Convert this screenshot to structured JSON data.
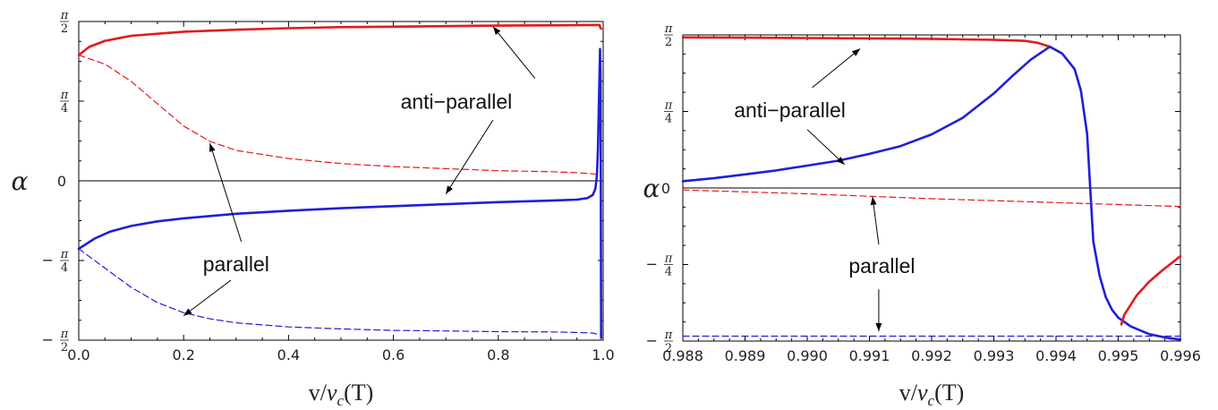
{
  "chart_data": [
    {
      "type": "line",
      "panel": "left",
      "xlabel": "v/",
      "xlabel_sym": "v",
      "xlabel_sub": "c",
      "xlabel_tail": "(T)",
      "ylabel": "α",
      "xlim": [
        0.0,
        1.0
      ],
      "ylim": [
        -1.5708,
        1.5708
      ],
      "x_ticks": [
        "0.0",
        "0.2",
        "0.4",
        "0.6",
        "0.8",
        "1.0"
      ],
      "x_tick_values": [
        0.0,
        0.2,
        0.4,
        0.6,
        0.8,
        1.0
      ],
      "y_ticks": [
        {
          "value": 1.5708,
          "sign": "",
          "num": "π",
          "den": "2"
        },
        {
          "value": 0.7854,
          "sign": "",
          "num": "π",
          "den": "4"
        },
        {
          "value": 0,
          "sign": "",
          "num": "",
          "den": "",
          "plain": "0"
        },
        {
          "value": -0.7854,
          "sign": "−",
          "num": "π",
          "den": "4"
        },
        {
          "value": -1.5708,
          "sign": "−",
          "num": "π",
          "den": "2"
        }
      ],
      "series": [
        {
          "color": "#e31a1c",
          "dash": false,
          "x": [
            0.0,
            0.02,
            0.05,
            0.1,
            0.2,
            0.3,
            0.4,
            0.5,
            0.6,
            0.7,
            0.8,
            0.9,
            0.95,
            0.98,
            0.99,
            0.993
          ],
          "y": [
            1.24,
            1.32,
            1.38,
            1.43,
            1.47,
            1.49,
            1.505,
            1.515,
            1.52,
            1.525,
            1.53,
            1.533,
            1.535,
            1.536,
            1.536,
            1.536
          ]
        },
        {
          "color": "#e31a1c",
          "dash": false,
          "x": [
            0.993,
            0.9945,
            0.996
          ],
          "y": [
            1.536,
            1.51,
            1.5
          ]
        },
        {
          "color": "#e31a1c",
          "dash": true,
          "x": [
            0.0,
            0.05,
            0.1,
            0.15,
            0.2,
            0.25,
            0.3,
            0.4,
            0.5,
            0.6,
            0.7,
            0.8,
            0.9,
            0.95,
            0.98,
            0.996
          ],
          "y": [
            1.24,
            1.15,
            0.98,
            0.76,
            0.54,
            0.39,
            0.3,
            0.22,
            0.17,
            0.14,
            0.12,
            0.1,
            0.09,
            0.08,
            0.07,
            0.05
          ]
        },
        {
          "color": "#1f1fd6",
          "dash": false,
          "x": [
            0.0,
            0.03,
            0.06,
            0.1,
            0.15,
            0.2,
            0.3,
            0.4,
            0.5,
            0.6,
            0.7,
            0.8,
            0.9,
            0.95,
            0.97,
            0.98,
            0.985,
            0.988,
            0.99,
            0.992,
            0.994,
            0.995,
            0.996
          ],
          "y": [
            -0.67,
            -0.57,
            -0.5,
            -0.445,
            -0.4,
            -0.37,
            -0.325,
            -0.295,
            -0.27,
            -0.25,
            -0.23,
            -0.21,
            -0.195,
            -0.185,
            -0.17,
            -0.14,
            -0.08,
            0.05,
            0.3,
            0.8,
            1.3,
            1.0,
            -1.55
          ]
        },
        {
          "color": "#1f1fd6",
          "dash": true,
          "x": [
            0.0,
            0.05,
            0.1,
            0.15,
            0.2,
            0.25,
            0.3,
            0.4,
            0.5,
            0.6,
            0.7,
            0.8,
            0.9,
            0.95,
            0.98,
            0.996
          ],
          "y": [
            -0.67,
            -0.86,
            -1.05,
            -1.2,
            -1.3,
            -1.36,
            -1.4,
            -1.44,
            -1.46,
            -1.475,
            -1.48,
            -1.487,
            -1.49,
            -1.495,
            -1.5,
            -1.52
          ]
        }
      ],
      "annotations": [
        {
          "text": "anti−parallel",
          "x": 0.72,
          "y": 0.78,
          "arrows": [
            {
              "from": [
                0.87,
                1.01
              ],
              "to": [
                0.79,
                1.52
              ]
            },
            {
              "from": [
                0.79,
                0.6
              ],
              "to": [
                0.7,
                -0.13
              ]
            }
          ]
        },
        {
          "text": "parallel",
          "x": 0.3,
          "y": -0.82,
          "arrows": [
            {
              "from": [
                0.31,
                -0.6
              ],
              "to": [
                0.25,
                0.37
              ]
            },
            {
              "from": [
                0.29,
                -0.98
              ],
              "to": [
                0.2,
                -1.33
              ]
            }
          ]
        }
      ],
      "hline": 0
    },
    {
      "type": "line",
      "panel": "right",
      "xlabel": "v/",
      "xlabel_sym": "v",
      "xlabel_sub": "c",
      "xlabel_tail": "(T)",
      "ylabel": "α",
      "xlim": [
        0.988,
        0.996
      ],
      "ylim": [
        -1.5708,
        1.5708
      ],
      "x_ticks": [
        "0.988",
        "0.989",
        "0.990",
        "0.991",
        "0.992",
        "0.993",
        "0.994",
        "0.995",
        "0.996"
      ],
      "x_tick_values": [
        0.988,
        0.989,
        0.99,
        0.991,
        0.992,
        0.993,
        0.994,
        0.995,
        0.996
      ],
      "y_ticks": [
        {
          "value": 1.5708,
          "sign": "",
          "num": "π",
          "den": "2"
        },
        {
          "value": 0.7854,
          "sign": "",
          "num": "π",
          "den": "4"
        },
        {
          "value": 0,
          "sign": "",
          "num": "",
          "den": "",
          "plain": "0"
        },
        {
          "value": -0.7854,
          "sign": "−",
          "num": "π",
          "den": "4"
        },
        {
          "value": -1.5708,
          "sign": "−",
          "num": "π",
          "den": "2"
        }
      ],
      "series": [
        {
          "color": "#e31a1c",
          "dash": false,
          "x": [
            0.988,
            0.989,
            0.99,
            0.991,
            0.992,
            0.993,
            0.9935,
            0.9937,
            0.9939
          ],
          "y": [
            1.545,
            1.542,
            1.539,
            1.535,
            1.53,
            1.52,
            1.51,
            1.49,
            1.45
          ]
        },
        {
          "color": "#1f1fd6",
          "dash": false,
          "x": [
            0.988,
            0.9885,
            0.989,
            0.9895,
            0.99,
            0.9905,
            0.991,
            0.9915,
            0.992,
            0.9925,
            0.993,
            0.9933,
            0.9936,
            0.9939
          ],
          "y": [
            0.07,
            0.1,
            0.14,
            0.18,
            0.23,
            0.28,
            0.35,
            0.43,
            0.55,
            0.72,
            0.97,
            1.15,
            1.32,
            1.45
          ]
        },
        {
          "color": "#1f1fd6",
          "dash": false,
          "x": [
            0.9939,
            0.9941,
            0.9943,
            0.9944,
            0.9945,
            0.99455,
            0.9946,
            0.9947,
            0.9948,
            0.9949,
            0.995,
            0.9952,
            0.9955,
            0.9958,
            0.996
          ],
          "y": [
            1.45,
            1.38,
            1.22,
            1.0,
            0.55,
            0.0,
            -0.55,
            -0.9,
            -1.12,
            -1.25,
            -1.33,
            -1.42,
            -1.5,
            -1.54,
            -1.555
          ]
        },
        {
          "color": "#e31a1c",
          "dash": false,
          "x": [
            0.99505,
            0.9951,
            0.9952,
            0.9953,
            0.9955,
            0.9957,
            0.996
          ],
          "y": [
            -1.4,
            -1.3,
            -1.2,
            -1.1,
            -0.96,
            -0.85,
            -0.7
          ]
        },
        {
          "color": "#e31a1c",
          "dash": true,
          "x": [
            0.988,
            0.99,
            0.992,
            0.994,
            0.996
          ],
          "y": [
            -0.02,
            -0.06,
            -0.11,
            -0.15,
            -0.19
          ]
        },
        {
          "color": "#1f1fd6",
          "dash": true,
          "x": [
            0.988,
            0.992,
            0.996
          ],
          "y": [
            -1.52,
            -1.52,
            -1.52
          ]
        }
      ],
      "annotations": [
        {
          "text": "anti−parallel",
          "x": 0.98972,
          "y": 0.8,
          "arrows": [
            {
              "from": [
                0.99008,
                1.03
              ],
              "to": [
                0.99085,
                1.43
              ]
            },
            {
              "from": [
                0.99,
                0.6
              ],
              "to": [
                0.9906,
                0.24
              ]
            }
          ]
        },
        {
          "text": "parallel",
          "x": 0.9912,
          "y": -0.8,
          "arrows": [
            {
              "from": [
                0.99115,
                -0.58
              ],
              "to": [
                0.99105,
                -0.09
              ]
            },
            {
              "from": [
                0.99115,
                -1.04
              ],
              "to": [
                0.99115,
                -1.47
              ]
            }
          ]
        }
      ],
      "hline": 0
    }
  ]
}
